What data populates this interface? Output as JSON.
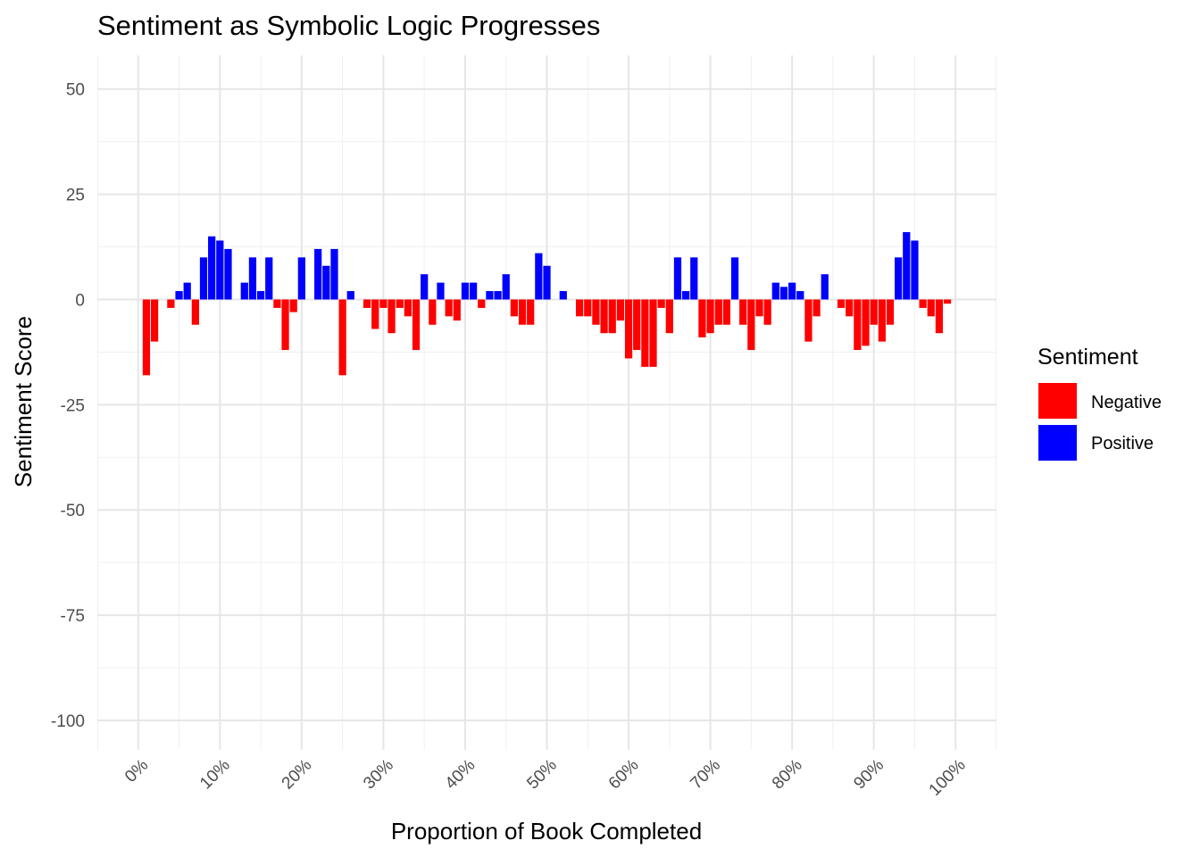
{
  "chart_data": {
    "type": "bar",
    "title": "Sentiment as Symbolic Logic Progresses",
    "xlabel": "Proportion of Book Completed",
    "ylabel": "Sentiment Score",
    "xlim": [
      -0.05,
      1.05
    ],
    "ylim": [
      -107,
      58
    ],
    "x_ticks": [
      0,
      0.1,
      0.2,
      0.3,
      0.4,
      0.5,
      0.6,
      0.7,
      0.8,
      0.9,
      1.0
    ],
    "x_tick_labels": [
      "0%",
      "10%",
      "20%",
      "30%",
      "40%",
      "50%",
      "60%",
      "70%",
      "80%",
      "90%",
      "100%"
    ],
    "y_ticks": [
      50,
      25,
      0,
      -25,
      -50,
      -75,
      -100
    ],
    "y_tick_labels": [
      "50",
      "25",
      "0",
      "-25",
      "-50",
      "-75",
      "-100"
    ],
    "grid": true,
    "legend": {
      "title": "Sentiment",
      "position": "right",
      "items": [
        {
          "label": "Negative",
          "color": "#ff0000"
        },
        {
          "label": "Positive",
          "color": "#0000ff"
        }
      ]
    },
    "colors": {
      "positive": "#0000ff",
      "negative": "#ff0000"
    },
    "bar_width": 0.009,
    "series": [
      {
        "name": "Negative",
        "color": "#ff0000",
        "x": [
          0.01,
          0.02,
          0.04,
          0.07,
          0.17,
          0.18,
          0.19,
          0.25,
          0.28,
          0.29,
          0.3,
          0.31,
          0.32,
          0.33,
          0.34,
          0.36,
          0.38,
          0.39,
          0.42,
          0.46,
          0.47,
          0.48,
          0.54,
          0.55,
          0.56,
          0.57,
          0.58,
          0.59,
          0.6,
          0.61,
          0.62,
          0.63,
          0.64,
          0.65,
          0.69,
          0.7,
          0.71,
          0.72,
          0.74,
          0.75,
          0.76,
          0.77,
          0.82,
          0.83,
          0.86,
          0.87,
          0.88,
          0.89,
          0.9,
          0.91,
          0.92,
          0.96,
          0.97,
          0.98,
          0.99
        ],
        "values": [
          -18,
          -10,
          -2,
          -6,
          -2,
          -12,
          -3,
          -18,
          -2,
          -7,
          -2,
          -8,
          -2,
          -4,
          -12,
          -6,
          -4,
          -5,
          -2,
          -4,
          -6,
          -6,
          -4,
          -4,
          -6,
          -8,
          -8,
          -5,
          -14,
          -12,
          -16,
          -16,
          -2,
          -8,
          -9,
          -8,
          -6,
          -6,
          -6,
          -12,
          -4,
          -6,
          -10,
          -4,
          -2,
          -4,
          -12,
          -11,
          -6,
          -10,
          -6,
          -2,
          -4,
          -8,
          -1
        ]
      },
      {
        "name": "Positive",
        "color": "#0000ff",
        "x": [
          0.05,
          0.06,
          0.08,
          0.09,
          0.1,
          0.11,
          0.13,
          0.14,
          0.15,
          0.16,
          0.2,
          0.22,
          0.23,
          0.24,
          0.26,
          0.35,
          0.37,
          0.4,
          0.41,
          0.43,
          0.44,
          0.45,
          0.49,
          0.5,
          0.52,
          0.66,
          0.67,
          0.68,
          0.73,
          0.78,
          0.79,
          0.8,
          0.81,
          0.84,
          0.93,
          0.94,
          0.95
        ],
        "values": [
          2,
          4,
          10,
          15,
          14,
          12,
          4,
          10,
          2,
          10,
          10,
          12,
          8,
          12,
          2,
          6,
          4,
          4,
          4,
          2,
          2,
          6,
          11,
          8,
          2,
          10,
          2,
          10,
          10,
          4,
          3,
          4,
          2,
          6,
          10,
          16,
          14
        ]
      }
    ]
  }
}
